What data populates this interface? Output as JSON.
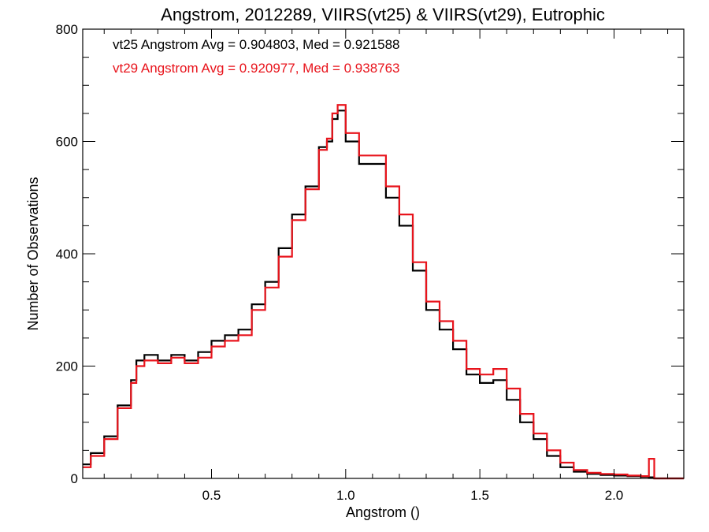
{
  "chart_data": {
    "type": "line",
    "title": "Angstrom, 2012289, VIIRS(vt25) & VIIRS(vt29), Eutrophic",
    "xlabel": "Angstrom ()",
    "ylabel": "Number of Observations",
    "xlim": [
      0.02,
      2.26
    ],
    "ylim": [
      0,
      800
    ],
    "xticks": [
      0.5,
      1.0,
      1.5,
      2.0
    ],
    "xtick_labels": [
      "0.5",
      "1.0",
      "1.5",
      "2.0"
    ],
    "yticks": [
      0,
      200,
      400,
      600,
      800
    ],
    "ytick_labels": [
      "0",
      "200",
      "400",
      "600",
      "800"
    ],
    "grid": false,
    "annotations": [
      {
        "text": "vt25 Angstrom Avg = 0.904803, Med = 0.921588",
        "color": "#000000"
      },
      {
        "text": "vt29 Angstrom Avg = 0.920977, Med = 0.938763",
        "color": "#e8141c"
      }
    ],
    "series": [
      {
        "color": "#000000",
        "step": "histogram",
        "x": [
          0.02,
          0.05,
          0.1,
          0.15,
          0.2,
          0.22,
          0.25,
          0.3,
          0.35,
          0.4,
          0.45,
          0.5,
          0.55,
          0.6,
          0.65,
          0.7,
          0.75,
          0.8,
          0.85,
          0.9,
          0.93,
          0.95,
          0.97,
          1.0,
          1.05,
          1.1,
          1.15,
          1.2,
          1.25,
          1.3,
          1.35,
          1.4,
          1.45,
          1.5,
          1.55,
          1.6,
          1.65,
          1.7,
          1.75,
          1.8,
          1.85,
          1.9,
          1.95,
          2.0,
          2.05,
          2.1,
          2.13,
          2.15,
          2.2,
          2.26
        ],
        "y": [
          25,
          45,
          75,
          130,
          175,
          210,
          220,
          210,
          220,
          210,
          225,
          245,
          255,
          265,
          310,
          350,
          410,
          470,
          520,
          590,
          600,
          640,
          655,
          600,
          560,
          560,
          500,
          450,
          370,
          300,
          265,
          230,
          185,
          170,
          175,
          140,
          100,
          70,
          40,
          20,
          12,
          8,
          6,
          5,
          4,
          3,
          2,
          0,
          0,
          0
        ]
      },
      {
        "color": "#e8141c",
        "step": "histogram",
        "x": [
          0.02,
          0.05,
          0.1,
          0.15,
          0.2,
          0.22,
          0.25,
          0.3,
          0.35,
          0.4,
          0.45,
          0.5,
          0.55,
          0.6,
          0.65,
          0.7,
          0.75,
          0.8,
          0.85,
          0.9,
          0.93,
          0.95,
          0.97,
          1.0,
          1.05,
          1.1,
          1.15,
          1.2,
          1.25,
          1.3,
          1.35,
          1.4,
          1.45,
          1.5,
          1.55,
          1.6,
          1.65,
          1.7,
          1.75,
          1.8,
          1.85,
          1.9,
          1.95,
          2.0,
          2.05,
          2.1,
          2.13,
          2.15,
          2.2,
          2.26
        ],
        "y": [
          20,
          40,
          70,
          125,
          170,
          200,
          210,
          205,
          215,
          205,
          215,
          235,
          245,
          255,
          300,
          340,
          395,
          460,
          515,
          585,
          605,
          650,
          665,
          615,
          575,
          575,
          520,
          470,
          385,
          315,
          280,
          245,
          195,
          185,
          195,
          160,
          115,
          80,
          50,
          28,
          15,
          10,
          8,
          7,
          5,
          4,
          35,
          0,
          0,
          0
        ]
      }
    ]
  }
}
